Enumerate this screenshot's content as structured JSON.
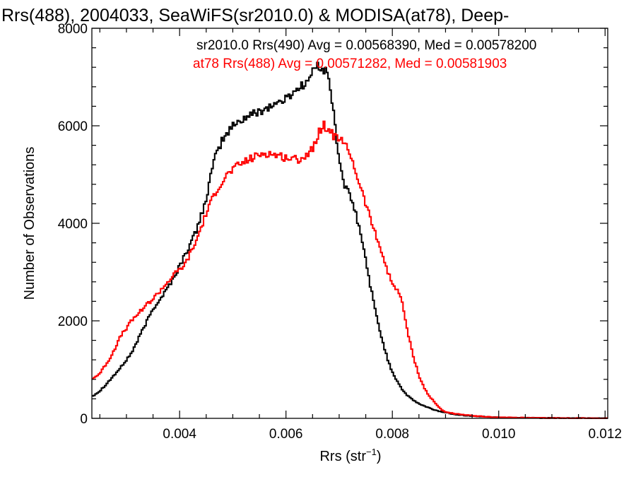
{
  "chart_data": {
    "type": "line",
    "title": "Rrs(488), 2004033, SeaWiFS(sr2010.0) & MODISA(at78), Deep-",
    "xlabel_main": "Rrs (str",
    "xlabel_sup": "−1",
    "xlabel_end": ")",
    "ylabel": "Number of Observations",
    "xlim": [
      0.00235,
      0.01205
    ],
    "ylim": [
      0,
      8000
    ],
    "x_ticks": [
      {
        "value": 0.004,
        "label": "0.004"
      },
      {
        "value": 0.006,
        "label": "0.006"
      },
      {
        "value": 0.008,
        "label": "0.008"
      },
      {
        "value": 0.01,
        "label": "0.010"
      },
      {
        "value": 0.012,
        "label": "0.012"
      }
    ],
    "y_ticks": [
      {
        "value": 0,
        "label": "0"
      },
      {
        "value": 2000,
        "label": "2000"
      },
      {
        "value": 4000,
        "label": "4000"
      },
      {
        "value": 6000,
        "label": "6000"
      },
      {
        "value": 8000,
        "label": "8000"
      }
    ],
    "legend": [
      {
        "text": "sr2010.0 Rrs(490) Avg = 0.00568390, Med = 0.00578200",
        "color": "#000000"
      },
      {
        "text": "at78 Rrs(488) Avg = 0.00571282, Med = 0.00581903",
        "color": "#ff0000"
      }
    ],
    "series": [
      {
        "color": "#000000",
        "x": [
          0.00235,
          0.0025,
          0.0027,
          0.0029,
          0.0031,
          0.0033,
          0.0035,
          0.0037,
          0.0039,
          0.0041,
          0.0043,
          0.0045,
          0.0046,
          0.0047,
          0.0048,
          0.0049,
          0.005,
          0.0052,
          0.0054,
          0.0056,
          0.0058,
          0.006,
          0.0062,
          0.0064,
          0.0065,
          0.0066,
          0.0067,
          0.0068,
          0.0069,
          0.007,
          0.0071,
          0.0072,
          0.0073,
          0.0074,
          0.0075,
          0.0076,
          0.0077,
          0.0078,
          0.0079,
          0.008,
          0.0081,
          0.0082,
          0.0083,
          0.0084,
          0.0085,
          0.0086,
          0.0087,
          0.0088,
          0.0089,
          0.009,
          0.0092,
          0.0094,
          0.0096,
          0.0098,
          0.01,
          0.0103,
          0.0106,
          0.0109,
          0.0112,
          0.0115,
          0.0118,
          0.01205
        ],
        "y": [
          450,
          560,
          800,
          1050,
          1350,
          1800,
          2250,
          2550,
          2900,
          3350,
          3800,
          4500,
          5050,
          5450,
          5700,
          5850,
          6000,
          6150,
          6250,
          6350,
          6450,
          6550,
          6750,
          6900,
          7100,
          7250,
          7150,
          7050,
          6200,
          5300,
          4800,
          4550,
          4250,
          3800,
          3250,
          2650,
          2100,
          1650,
          1250,
          950,
          750,
          570,
          450,
          370,
          300,
          250,
          210,
          170,
          140,
          120,
          80,
          55,
          40,
          30,
          20,
          15,
          10,
          8,
          5,
          4,
          3,
          2
        ]
      },
      {
        "color": "#ff0000",
        "x": [
          0.00235,
          0.0025,
          0.0027,
          0.0029,
          0.0031,
          0.0033,
          0.0035,
          0.0037,
          0.0039,
          0.0041,
          0.0043,
          0.0045,
          0.0046,
          0.0047,
          0.0048,
          0.0049,
          0.005,
          0.0052,
          0.0054,
          0.0056,
          0.0058,
          0.006,
          0.0062,
          0.0064,
          0.0065,
          0.0066,
          0.0067,
          0.0068,
          0.0069,
          0.007,
          0.0071,
          0.0072,
          0.0073,
          0.0074,
          0.0075,
          0.0076,
          0.0077,
          0.0078,
          0.0079,
          0.008,
          0.0081,
          0.0082,
          0.0083,
          0.0084,
          0.0085,
          0.0086,
          0.0087,
          0.0088,
          0.0089,
          0.009,
          0.0092,
          0.0094,
          0.0096,
          0.0098,
          0.01,
          0.0103,
          0.0106,
          0.0109,
          0.0112,
          0.0115,
          0.0118,
          0.01205
        ],
        "y": [
          800,
          920,
          1250,
          1700,
          2000,
          2250,
          2450,
          2700,
          2950,
          3150,
          3600,
          4200,
          4450,
          4700,
          4850,
          5000,
          5100,
          5250,
          5350,
          5450,
          5400,
          5350,
          5300,
          5400,
          5550,
          5800,
          6050,
          5900,
          5800,
          5750,
          5600,
          5450,
          5100,
          4750,
          4400,
          4050,
          3750,
          3400,
          3050,
          2750,
          2650,
          2300,
          1700,
          1250,
          880,
          620,
          450,
          320,
          200,
          130,
          90,
          65,
          45,
          30,
          22,
          15,
          10,
          7,
          5,
          4,
          3,
          2
        ]
      }
    ]
  }
}
